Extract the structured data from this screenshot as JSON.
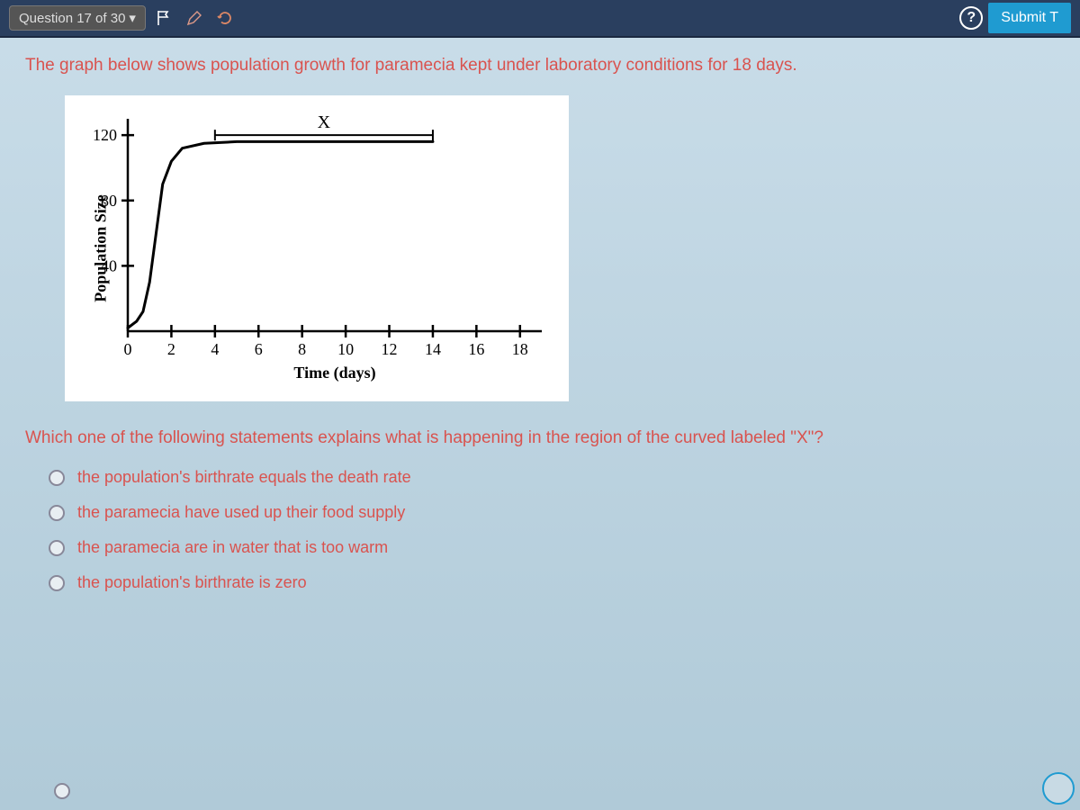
{
  "topbar": {
    "question_label": "Question 17 of 30",
    "help_symbol": "?",
    "submit_label": "Submit T"
  },
  "intro_text": "The graph below shows population growth for paramecia kept under laboratory conditions for 18 days.",
  "chart": {
    "type": "line",
    "x_label": "Time (days)",
    "y_label": "Population Size",
    "x_ticks": [
      0,
      2,
      4,
      6,
      8,
      10,
      12,
      14,
      16,
      18
    ],
    "y_ticks": [
      40,
      80,
      120
    ],
    "xlim": [
      0,
      19
    ],
    "ylim": [
      0,
      130
    ],
    "marker_label": "X",
    "curve": [
      [
        0,
        2
      ],
      [
        0.4,
        6
      ],
      [
        0.7,
        12
      ],
      [
        1,
        30
      ],
      [
        1.3,
        60
      ],
      [
        1.6,
        90
      ],
      [
        2,
        104
      ],
      [
        2.5,
        112
      ],
      [
        3.5,
        115
      ],
      [
        5,
        116
      ],
      [
        8,
        116
      ],
      [
        12,
        116
      ],
      [
        14,
        116
      ]
    ],
    "x_bracket": {
      "start": 4,
      "end": 14,
      "y": 120
    },
    "line_color": "#000000",
    "axis_color": "#000000",
    "background_color": "#ffffff",
    "tick_fontsize": 18,
    "label_fontsize": 18,
    "line_width": 3
  },
  "question_text": "Which one of the following statements explains what is happening in the region of the curved labeled \"X\"?",
  "options": [
    "the population's birthrate equals the death rate",
    "the paramecia have used up their food supply",
    "the paramecia are in water that is too warm",
    "the population's birthrate is zero"
  ],
  "colors": {
    "topbar_bg": "#2a3f5f",
    "text_red": "#d9534f",
    "submit_bg": "#1f9bd1",
    "page_bg": "#b8d4e3"
  }
}
